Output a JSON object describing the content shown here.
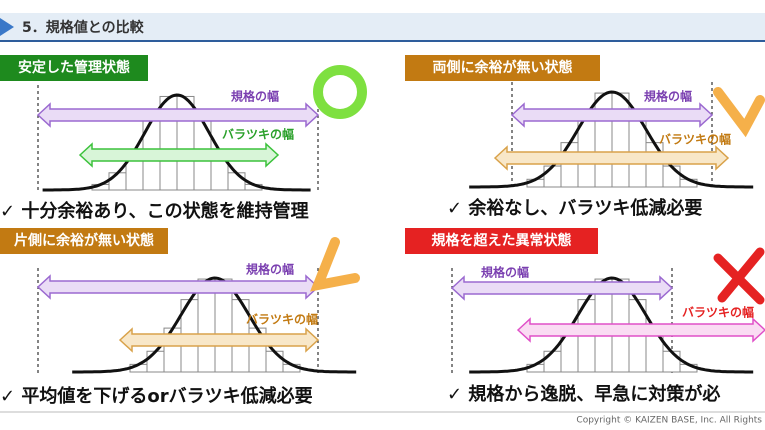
{
  "header": {
    "section": "5．規格値との比較"
  },
  "panels": [
    {
      "title": "安定した管理状態",
      "spec_label": "規格の幅",
      "variation_label": "バラツキの幅",
      "conclusion": "✓ 十分余裕あり、この状態を維持管理"
    },
    {
      "title": "両側に余裕が無い状態",
      "spec_label": "規格の幅",
      "variation_label": "バラツキの幅",
      "conclusion": "✓ 余裕なし、バラツキ低減必要"
    },
    {
      "title": "片側に余裕が無い状態",
      "spec_label": "規格の幅",
      "variation_label": "バラツキの幅",
      "conclusion": "✓ 平均値を下げるorバラツキ低減必要"
    },
    {
      "title": "規格を超えた異常状態",
      "spec_label": "規格の幅",
      "variation_label": "バラツキの幅",
      "conclusion": "✓ 規格から逸脱、早急に対策が必"
    }
  ],
  "footer": {
    "copyright": "Copyright ©  KAIZEN BASE, Inc. All Rights"
  }
}
